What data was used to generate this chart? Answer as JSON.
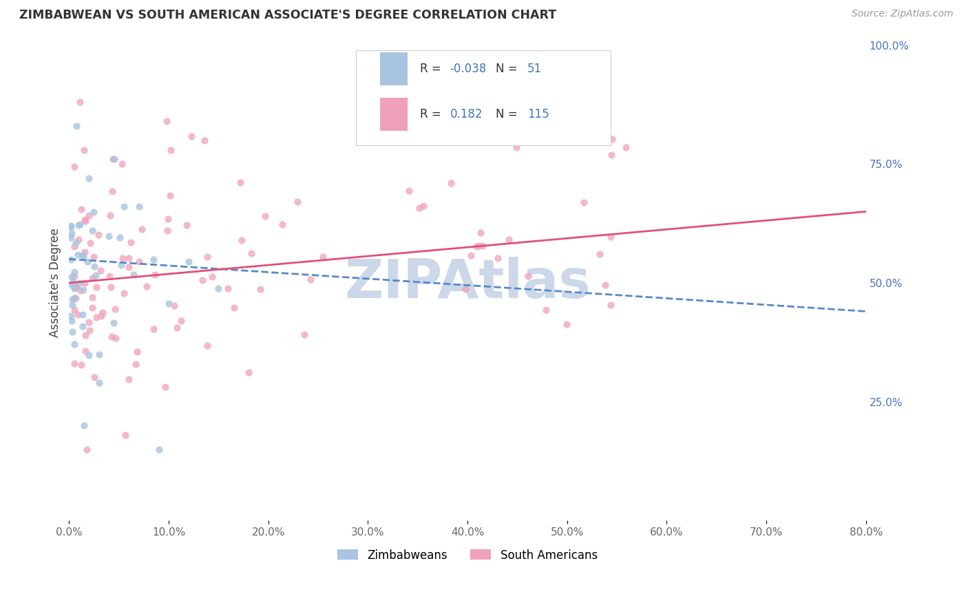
{
  "title": "ZIMBABWEAN VS SOUTH AMERICAN ASSOCIATE'S DEGREE CORRELATION CHART",
  "source": "Source: ZipAtlas.com",
  "ylabel": "Associate's Degree",
  "x_min": 0.0,
  "x_max": 80.0,
  "y_min": 0.0,
  "y_max": 100.0,
  "y_ticks_right": [
    25.0,
    50.0,
    75.0,
    100.0
  ],
  "legend_r1": "-0.038",
  "legend_n1": "51",
  "legend_r2": "0.182",
  "legend_n2": "115",
  "color_blue": "#a8c4e0",
  "color_pink": "#f0a0b8",
  "color_line_blue": "#5588cc",
  "color_line_pink": "#e0507a",
  "color_text_blue": "#4472c4",
  "color_watermark": "#ccd8e8",
  "legend_label1": "Zimbabweans",
  "legend_label2": "South Americans",
  "background_color": "#ffffff",
  "grid_color": "#cccccc",
  "blue_line_start_y": 55.0,
  "blue_line_end_y": 44.0,
  "pink_line_start_y": 50.0,
  "pink_line_end_y": 65.0
}
